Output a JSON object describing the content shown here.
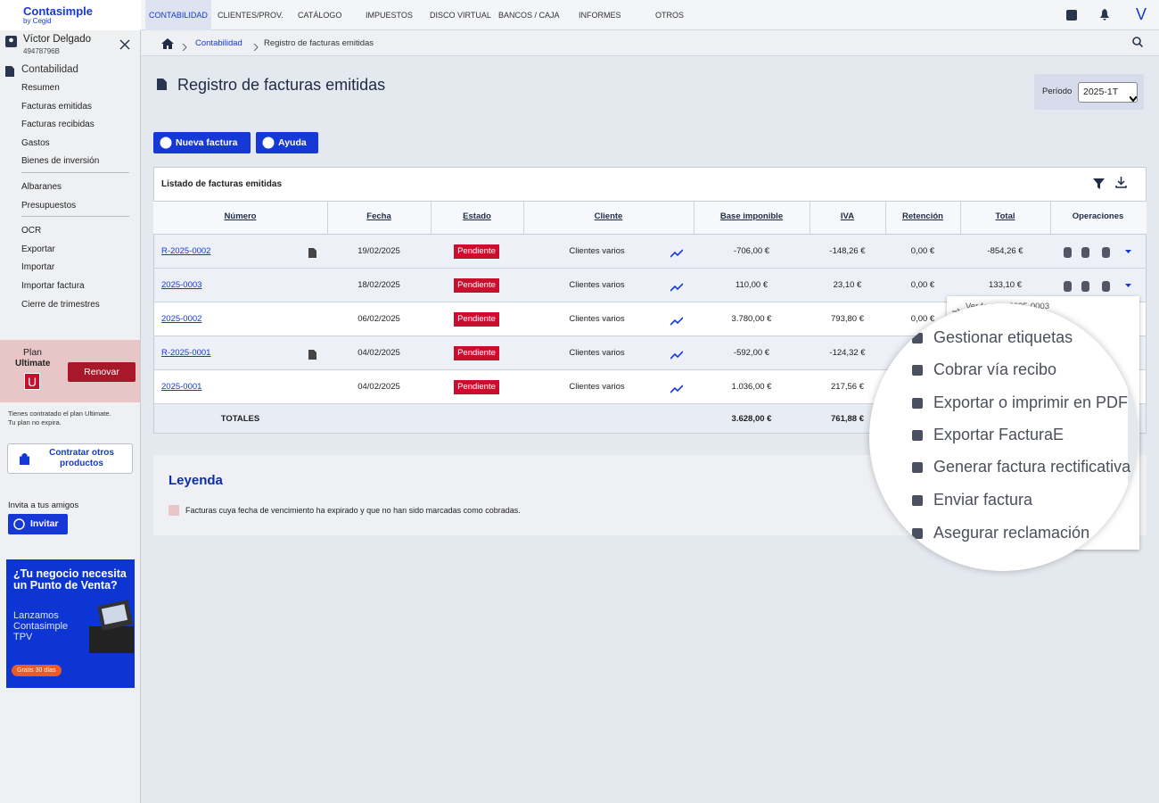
{
  "header": {
    "logo": "Contasimple",
    "logo_sub": "by Cegid",
    "nav": [
      "CONTABILIDAD",
      "CLIENTES/PROV.",
      "CATÁLOGO",
      "IMPUESTOS",
      "DISCO VIRTUAL",
      "BANCOS / CAJA",
      "INFORMES",
      "OTROS"
    ],
    "user_initial": "V"
  },
  "sidebar": {
    "user_name": "Víctor Delgado",
    "user_id": "49478796B",
    "section": "Contabilidad",
    "menu": [
      [
        "Resumen",
        "Facturas emitidas",
        "Facturas recibidas",
        "Gastos",
        "Bienes de inversión"
      ],
      [
        "Albaranes",
        "Presupuestos"
      ],
      [
        "OCR",
        "Exportar",
        "Importar",
        "Importar factura",
        "Cierre de trimestres"
      ]
    ],
    "plan": {
      "label": "Plan",
      "name": "Ultimate",
      "badge": "U",
      "renew": "Renovar",
      "note": [
        "Tienes contratado el plan Ultimate.",
        "Tu plan no expira."
      ]
    },
    "more_products": "Contratar otros productos",
    "invite_text": "Invita a tus amigos",
    "invite_button": "Invitar",
    "ad": {
      "title": "¿Tu negocio necesita un Punto de Venta?",
      "text": "Lanzamos Contasimple TPV",
      "cta": "Gratis 30 días"
    }
  },
  "breadcrumb": [
    "Contabilidad",
    "Registro de facturas emitidas"
  ],
  "page": {
    "title": "Registro de facturas emitidas",
    "period_label": "Período",
    "period_value": "2025-1T",
    "buttons": [
      "Nueva factura",
      "Ayuda"
    ]
  },
  "table": {
    "title": "Listado de facturas emitidas",
    "columns": [
      "Número",
      "Fecha",
      "Estado",
      "Cliente",
      "Base imponible",
      "IVA",
      "Retención",
      "Total",
      "Operaciones"
    ],
    "rows": [
      [
        "R-2025-0002",
        "19/02/2025",
        "Pendiente",
        "Clientes varios",
        "-706,00 €",
        "-148,26 €",
        "0,00 €",
        "-854,26 €"
      ],
      [
        "2025-0003",
        "18/02/2025",
        "Pendiente",
        "Clientes varios",
        "110,00 €",
        "23,10 €",
        "0,00 €",
        "133,10 €"
      ],
      [
        "2025-0002",
        "06/02/2025",
        "Pendiente",
        "Clientes varios",
        "3.780,00 €",
        "793,80 €",
        "0,00 €",
        null
      ],
      [
        "R-2025-0001",
        "04/02/2025",
        "Pendiente",
        "Clientes varios",
        "-592,00 €",
        "-124,32 €",
        null,
        null
      ],
      [
        "2025-0001",
        "04/02/2025",
        "Pendiente",
        "Clientes varios",
        "1.036,00 €",
        "217,56 €",
        null,
        null
      ]
    ],
    "totals": {
      "label": "TOTALES",
      "base": "3.628,00 €",
      "iva": "761,88 €"
    }
  },
  "legend": {
    "title": "Leyenda",
    "items": [
      "Facturas cuya fecha de vencimiento ha expirado y que no han sido marcadas como cobradas."
    ]
  },
  "dropdown": {
    "view": "Ver factura 2025-0003",
    "items": [
      "Gestionar etiquetas",
      "Cobrar vía recibo",
      "Exportar o imprimir en PDF",
      "Exportar FacturaE",
      "Generar factura rectificativa",
      "Enviar factura",
      "Asegurar reclamación"
    ]
  }
}
